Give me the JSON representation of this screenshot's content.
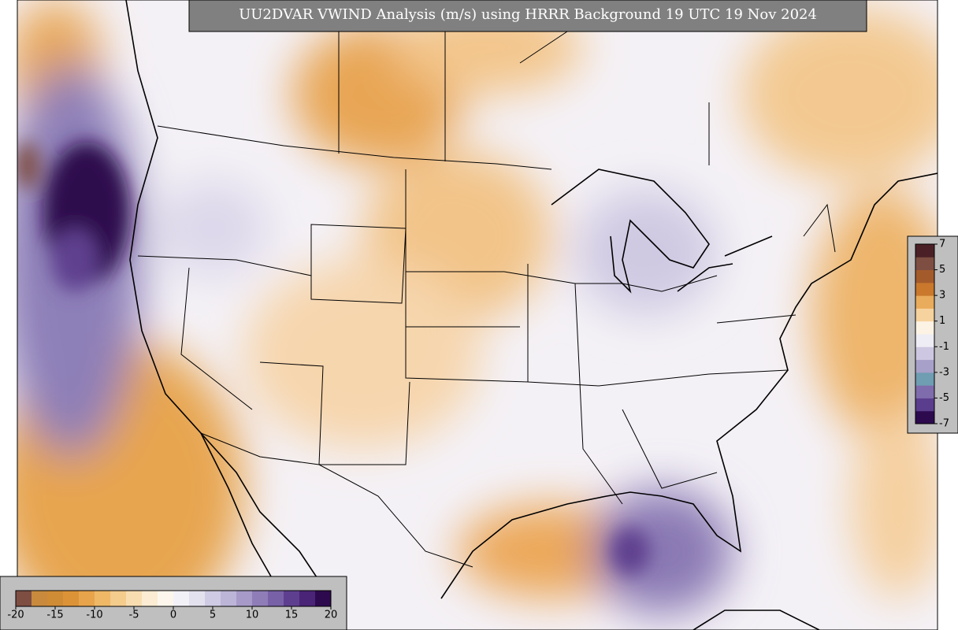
{
  "title": "UU2DVAR VWIND Analysis (m/s) using HRRR Background 19 UTC 19 Nov 2024",
  "colorbar_main": {
    "lim": [
      -20,
      20
    ],
    "ticks": [
      -20,
      -15,
      -10,
      -5,
      0,
      5,
      10,
      15,
      20
    ],
    "colors": [
      "#7e4e43",
      "#c98a3e",
      "#d08b35",
      "#dc9338",
      "#e7a44b",
      "#eeb867",
      "#f4cc8c",
      "#f8ddb1",
      "#fbecd3",
      "#fdf6ec",
      "#f3f1f8",
      "#e4e1ef",
      "#d0cbe4",
      "#bdb5d7",
      "#a79ac8",
      "#8f7db8",
      "#7961a7",
      "#5e3f8f",
      "#4a2477",
      "#2d0a4e"
    ]
  },
  "colorbar_side": {
    "lim": [
      -7,
      7
    ],
    "ticks": [
      7,
      5,
      3,
      1,
      -1,
      -3,
      -5,
      -7
    ],
    "colors": [
      "#2d0a4e",
      "#5a3d8c",
      "#7f6cac",
      "#6f9db2",
      "#a7a0c9",
      "#cdc7e1",
      "#eeecf5",
      "#fdf3e5",
      "#f6d29e",
      "#e9ab5c",
      "#c9782c",
      "#a45b2c",
      "#7e4e43",
      "#4a2026"
    ]
  }
}
